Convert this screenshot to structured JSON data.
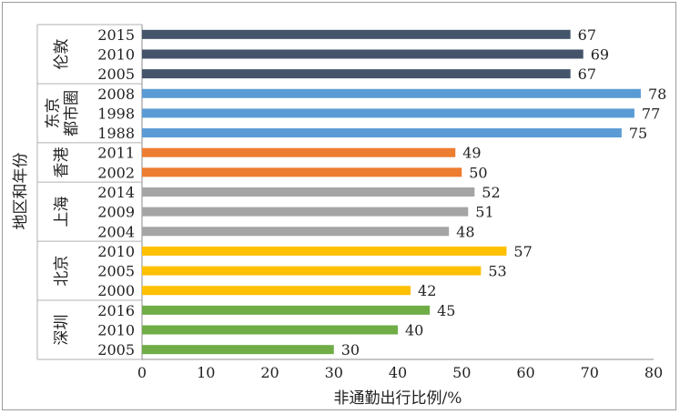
{
  "chart_data": {
    "type": "bar",
    "orientation": "horizontal",
    "xlabel": "非通勤出行比例/%",
    "ylabel": "地区和年份",
    "xlim": [
      0,
      80
    ],
    "xticks": [
      0,
      10,
      20,
      30,
      40,
      50,
      60,
      70,
      80
    ],
    "grid": false,
    "groups": [
      {
        "name": "伦敦",
        "color": "#44546a",
        "bars": [
          {
            "year": "2015",
            "value": 67
          },
          {
            "year": "2010",
            "value": 69
          },
          {
            "year": "2005",
            "value": 67
          }
        ]
      },
      {
        "name": "东京都市圈",
        "color": "#5b9bd5",
        "bars": [
          {
            "year": "2008",
            "value": 78
          },
          {
            "year": "1998",
            "value": 77
          },
          {
            "year": "1988",
            "value": 75
          }
        ]
      },
      {
        "name": "香港",
        "color": "#ed7d31",
        "bars": [
          {
            "year": "2011",
            "value": 49
          },
          {
            "year": "2002",
            "value": 50
          }
        ]
      },
      {
        "name": "上海",
        "color": "#a5a5a5",
        "bars": [
          {
            "year": "2014",
            "value": 52
          },
          {
            "year": "2009",
            "value": 51
          },
          {
            "year": "2004",
            "value": 48
          }
        ]
      },
      {
        "name": "北京",
        "color": "#ffc000",
        "bars": [
          {
            "year": "2010",
            "value": 57
          },
          {
            "year": "2005",
            "value": 53
          },
          {
            "year": "2000",
            "value": 42
          }
        ]
      },
      {
        "name": "深圳",
        "color": "#70ad47",
        "bars": [
          {
            "year": "2016",
            "value": 45
          },
          {
            "year": "2010",
            "value": 40
          },
          {
            "year": "2005",
            "value": 30
          }
        ]
      }
    ]
  }
}
